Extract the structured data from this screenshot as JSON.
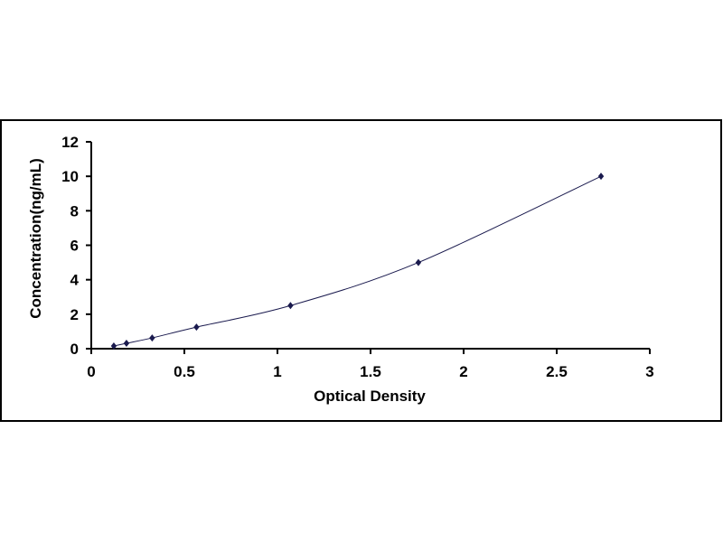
{
  "chart_data": {
    "type": "scatter",
    "title": "",
    "xlabel": "Optical Density",
    "ylabel": "Concentration(ng/mL)",
    "xlim": [
      0,
      3
    ],
    "ylim": [
      0,
      12
    ],
    "xticks": [
      "0",
      "0.5",
      "1",
      "1.5",
      "2",
      "2.5",
      "3"
    ],
    "yticks": [
      "0",
      "2",
      "4",
      "6",
      "8",
      "10",
      "12"
    ],
    "grid": false,
    "legend": "none",
    "marker": "diamond",
    "colors": {
      "marker": "#1a1a4e",
      "line": "#1a1a4e",
      "frame": "#000000"
    },
    "series": [
      {
        "x": [
          0.121,
          0.189,
          0.327,
          0.565,
          1.07,
          1.757,
          2.738
        ],
        "y": [
          0.156,
          0.312,
          0.625,
          1.25,
          2.5,
          5,
          10
        ],
        "fit": "smooth-curve"
      }
    ]
  }
}
